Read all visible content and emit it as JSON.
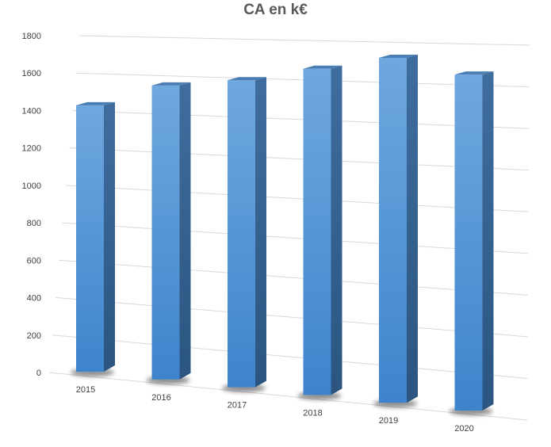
{
  "chart_data": {
    "type": "bar",
    "title": "CA en k€",
    "xlabel": "",
    "ylabel": "",
    "categories": [
      "2015",
      "2016",
      "2017",
      "2018",
      "2019",
      "2020"
    ],
    "values": [
      1450,
      1570,
      1610,
      1680,
      1745,
      1670
    ],
    "ylim": [
      0,
      1800
    ],
    "yticks": [
      "0",
      "200",
      "400",
      "600",
      "800",
      "1000",
      "1200",
      "1400",
      "1600",
      "1800"
    ],
    "grid": true,
    "legend": "none",
    "bar_color": "#5B9BD5"
  }
}
